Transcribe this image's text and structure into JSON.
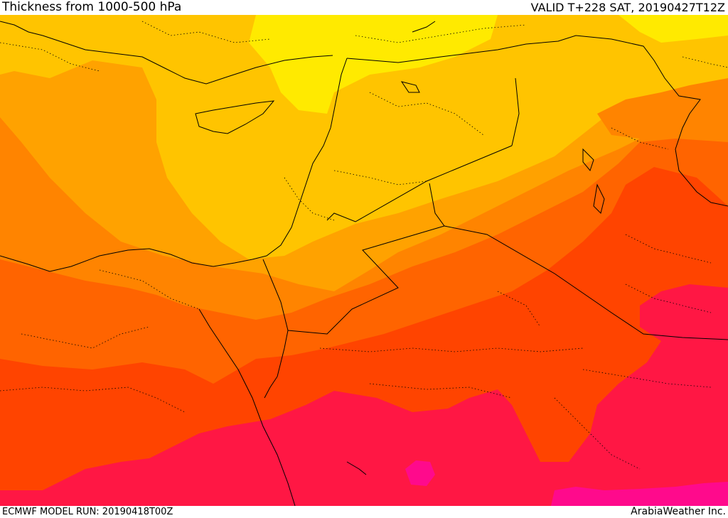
{
  "header": {
    "title": "Thickness from 1000-500 hPa",
    "valid": "VALID T+228 SAT, 20190427T12Z"
  },
  "footer": {
    "model_run": "ECMWF MODEL RUN: 20190418T00Z",
    "credit": "ArabiaWeather Inc."
  },
  "map": {
    "fill_colors": {
      "band_yellow": "#ffea00",
      "band_gold": "#ffc400",
      "band_amber": "#ffa200",
      "band_orange": "#ff8400",
      "band_red_orange": "#ff6400",
      "band_red": "#ff4400",
      "band_crimson": "#ff1744",
      "band_magenta": "#ff0a8c"
    },
    "boundary_color": "#000000"
  }
}
